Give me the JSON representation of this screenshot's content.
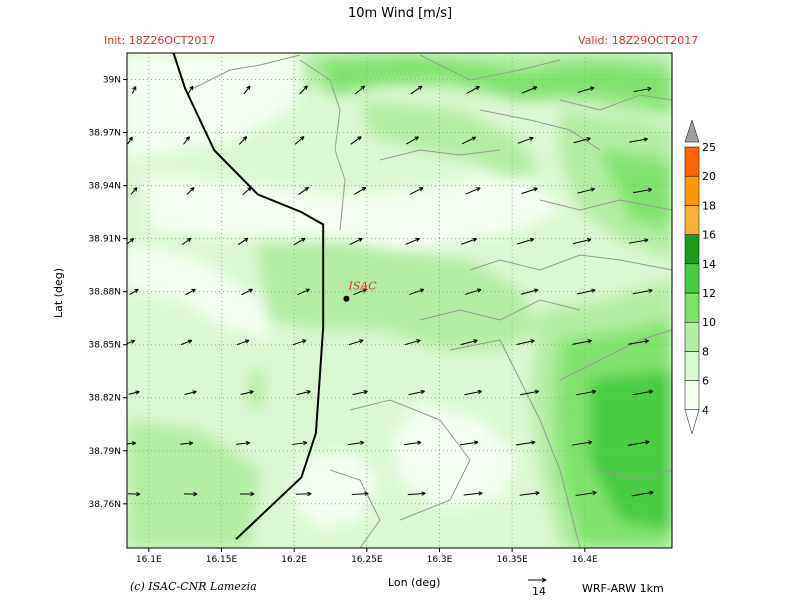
{
  "title": "10m Wind [m/s]",
  "init_label": "Init: 18Z26OCT2017",
  "valid_label": "Valid: 18Z29OCT2017",
  "ylabel": "Lat (deg)",
  "xlabel": "Lon (deg)",
  "copyright": "(c) ISAC-CNR Lamezia",
  "model_label": "WRF-ARW 1km",
  "reference_vector": {
    "value": "14"
  },
  "station": {
    "name": "ISAC",
    "lon": 16.236,
    "lat": 38.876
  },
  "map_extent": {
    "lon": [
      16.085,
      16.46
    ],
    "lat": [
      38.735,
      39.015
    ]
  },
  "x_ticks": [
    {
      "value": 16.1,
      "label": "16.1E"
    },
    {
      "value": 16.15,
      "label": "16.15E"
    },
    {
      "value": 16.2,
      "label": "16.2E"
    },
    {
      "value": 16.25,
      "label": "16.25E"
    },
    {
      "value": 16.3,
      "label": "16.3E"
    },
    {
      "value": 16.35,
      "label": "16.35E"
    },
    {
      "value": 16.4,
      "label": "16.4E"
    }
  ],
  "y_ticks": [
    {
      "value": 39.0,
      "label": "39N"
    },
    {
      "value": 38.97,
      "label": "38.97N"
    },
    {
      "value": 38.94,
      "label": "38.94N"
    },
    {
      "value": 38.91,
      "label": "38.91N"
    },
    {
      "value": 38.88,
      "label": "38.88N"
    },
    {
      "value": 38.85,
      "label": "38.85N"
    },
    {
      "value": 38.82,
      "label": "38.82N"
    },
    {
      "value": 38.79,
      "label": "38.79N"
    },
    {
      "value": 38.76,
      "label": "38.76N"
    }
  ],
  "colorbar": {
    "colors": [
      "#f5fff2",
      "#d9f7d0",
      "#b4eea4",
      "#7fe26c",
      "#48cc42",
      "#1c9c1c",
      "#fbb03b",
      "#ff9800",
      "#ff6400",
      "#a0a0a0"
    ],
    "levels": [
      "4",
      "6",
      "8",
      "10",
      "12",
      "14",
      "16",
      "18",
      "20",
      "25"
    ]
  },
  "coastline": [
    [
      16.115,
      39.02
    ],
    [
      16.125,
      38.995
    ],
    [
      16.145,
      38.96
    ],
    [
      16.175,
      38.935
    ],
    [
      16.205,
      38.925
    ],
    [
      16.22,
      38.918
    ],
    [
      16.22,
      38.86
    ],
    [
      16.215,
      38.8
    ],
    [
      16.205,
      38.775
    ],
    [
      16.16,
      38.74
    ]
  ],
  "chart_data": {
    "type": "heatmap",
    "title": "10m Wind [m/s]",
    "xlabel": "Lon (deg)",
    "ylabel": "Lat (deg)",
    "xlim": [
      16.085,
      16.46
    ],
    "ylim": [
      38.735,
      39.015
    ],
    "color_levels": [
      4,
      6,
      8,
      10,
      12,
      14,
      16,
      18,
      20,
      25
    ],
    "wind_speed_classes": [
      {
        "lon": 16.11,
        "lat": 38.95,
        "class": "4-6"
      },
      {
        "lon": 16.16,
        "lat": 38.93,
        "class": "<4"
      },
      {
        "lon": 16.26,
        "lat": 38.94,
        "class": "<4"
      },
      {
        "lon": 16.27,
        "lat": 38.79,
        "class": "<4"
      },
      {
        "lon": 16.28,
        "lat": 38.87,
        "class": "6-8"
      },
      {
        "lon": 16.31,
        "lat": 38.99,
        "class": "8-10"
      },
      {
        "lon": 16.4,
        "lat": 38.81,
        "class": "10-12"
      },
      {
        "lon": 16.42,
        "lat": 38.8,
        "class": "12-14"
      }
    ],
    "reference_vector_speed": 14
  }
}
